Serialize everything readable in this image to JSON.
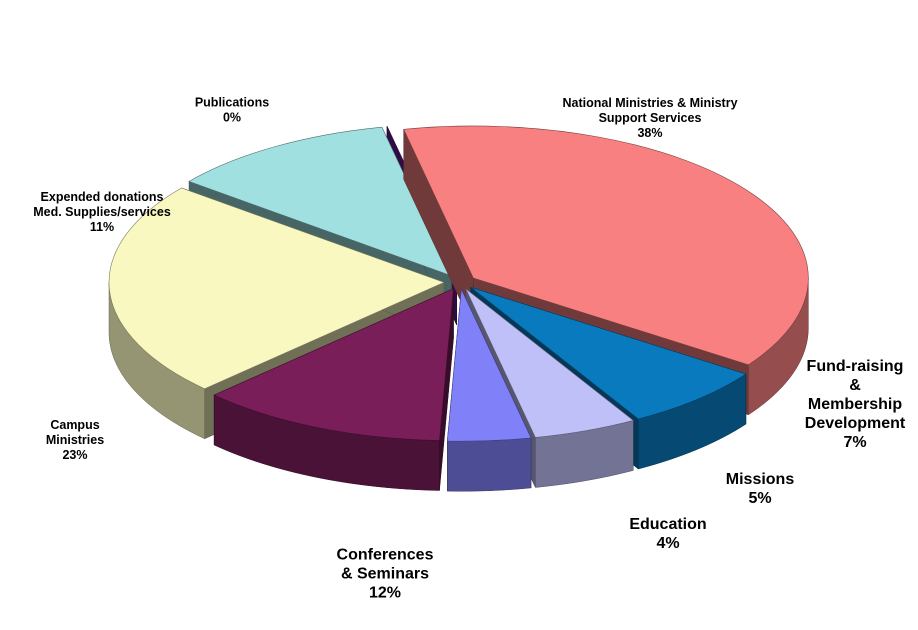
{
  "chart_data": {
    "type": "pie3d",
    "categories": [
      "National Ministries & Ministry\nSupport Services",
      "Fund-raising\n& Membership\nDevelopment",
      "Missions",
      "Education",
      "Conferences\n& Seminars",
      "Campus\nMinistries",
      "Expended donations\nMed. Supplies/services",
      "Publications"
    ],
    "values": [
      38,
      7,
      5,
      4,
      12,
      23,
      11,
      0
    ],
    "value_labels": [
      "38%",
      "7%",
      "5%",
      "4%",
      "12%",
      "23%",
      "11%",
      "0%"
    ],
    "colors": [
      "#f88080",
      "#0a7abf",
      "#c0c0f8",
      "#8080f8",
      "#7a1e5a",
      "#f8f8c0",
      "#a0e0e0",
      "#6a1a9a"
    ]
  }
}
